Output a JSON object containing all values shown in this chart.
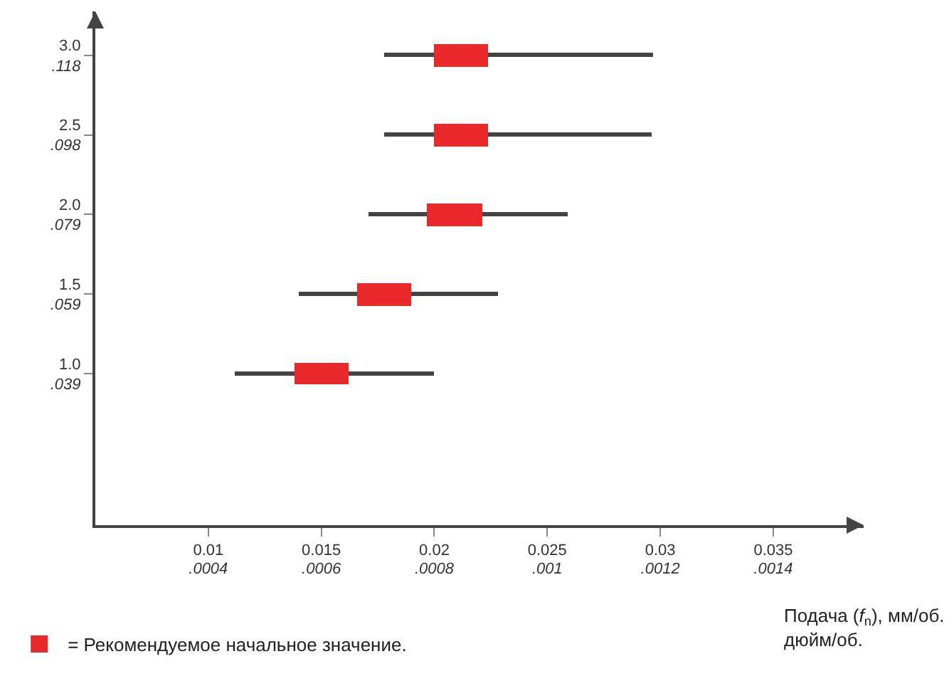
{
  "chart_data": {
    "type": "bar",
    "orientation": "horizontal",
    "categories": [
      "3.0\n.118",
      "2.5\n.098",
      "2.0\n.079",
      "1.5\n.059",
      "1.0\n.039"
    ],
    "series": [
      {
        "color": "#444444",
        "base": [
          0.0178,
          0.0178,
          0.0171,
          0.014,
          0.0112
        ],
        "values": [
          0.0119,
          0.0118,
          0.0088,
          0.0088,
          0.0088
        ]
      },
      {
        "name": "= Рекомендуемое начальное значение.",
        "color": "#e8282b",
        "base": [
          0.02,
          0.02,
          0.0197,
          0.0166,
          0.0138
        ],
        "values": [
          0.0024,
          0.0024,
          0.0024,
          0.0024,
          0.0024
        ]
      }
    ],
    "xlim": [
      0.005,
      0.039
    ],
    "xticks": [
      0.01,
      0.015,
      0.02,
      0.025,
      0.03,
      0.035
    ],
    "x2lim": [
      0.0002,
      0.00156
    ],
    "x2ticks": [
      {
        "value": 0.0004,
        "label": ".0004"
      },
      {
        "value": 0.0006,
        "label": ".0006"
      },
      {
        "value": 0.0008,
        "label": ".0008"
      },
      {
        "value": 0.001,
        "label": ".001"
      },
      {
        "value": 0.0012,
        "label": ".0012"
      },
      {
        "value": 0.0014,
        "label": ".0014"
      }
    ],
    "xlabel": "Подача (f$_{n}$), мм/об.\nдюйм/об.",
    "legend": "bottom left"
  }
}
